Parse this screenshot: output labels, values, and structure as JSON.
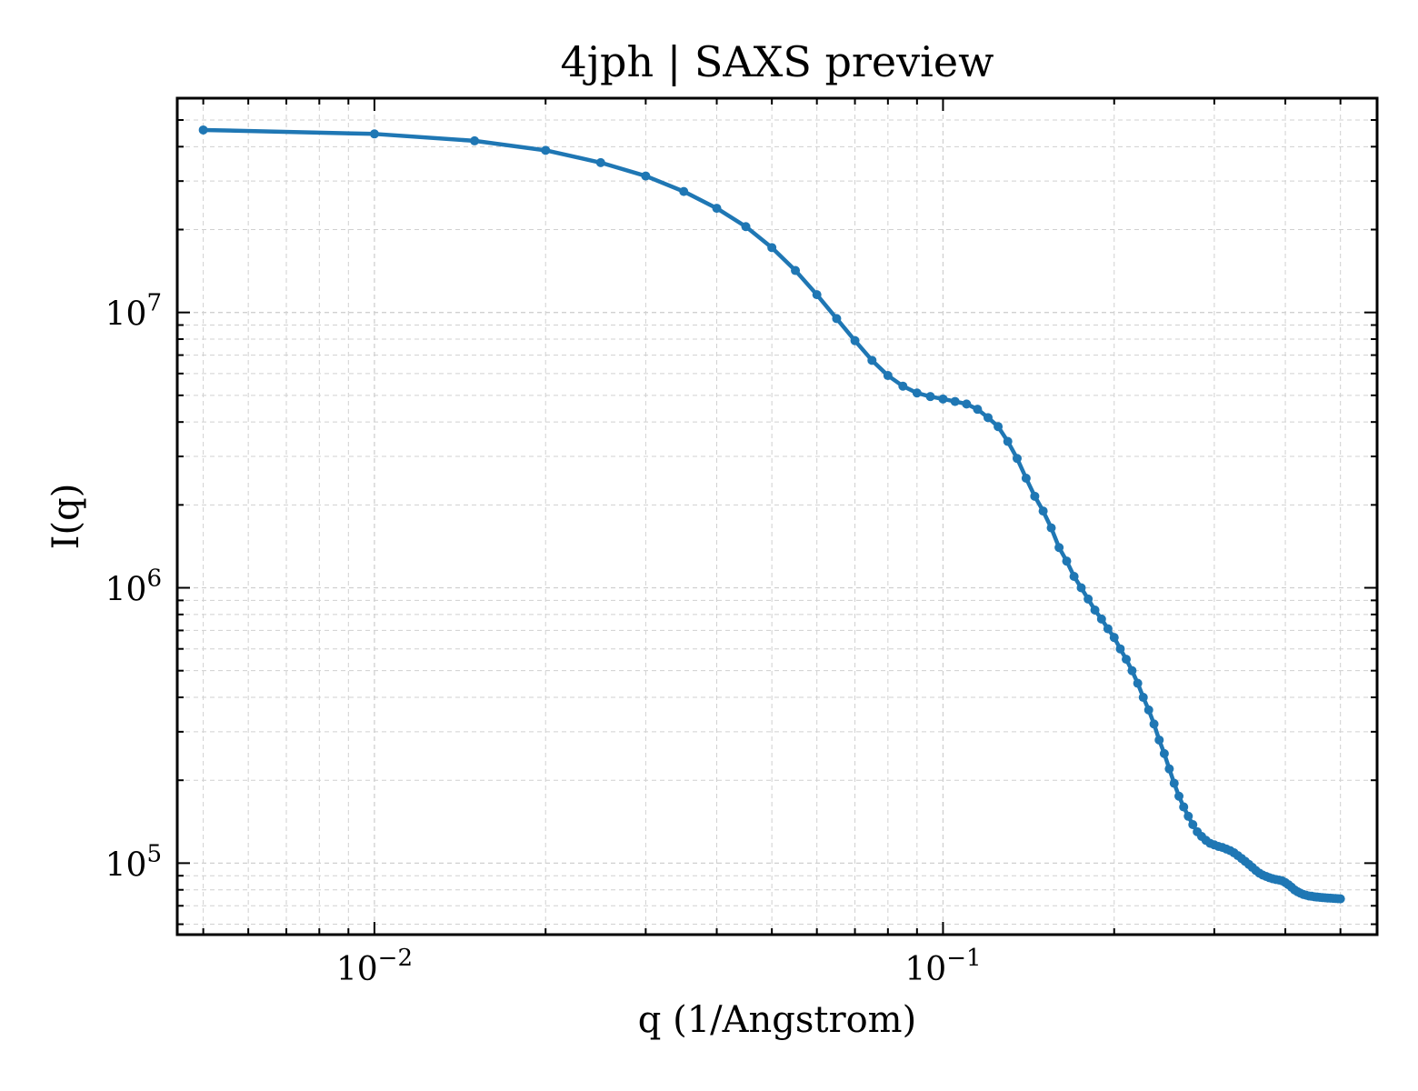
{
  "chart_data": {
    "type": "line",
    "title": "4jph | SAXS preview",
    "xlabel": "q (1/Angstrom)",
    "ylabel": "I(q)",
    "xscale": "log",
    "yscale": "log",
    "xlim": [
      0.0045,
      0.58
    ],
    "ylim": [
      55000,
      60000000
    ],
    "grid": true,
    "legend": "none",
    "line_color": "#1f77b4",
    "x_ticks": [
      {
        "base": "10",
        "exp": "−2",
        "value": 0.01
      },
      {
        "base": "10",
        "exp": "−1",
        "value": 0.1
      }
    ],
    "y_ticks": [
      {
        "base": "10",
        "exp": "5",
        "value": 100000
      },
      {
        "base": "10",
        "exp": "6",
        "value": 1000000
      },
      {
        "base": "10",
        "exp": "7",
        "value": 10000000
      }
    ],
    "series": [
      {
        "x": [
          0.005,
          0.01,
          0.015,
          0.02,
          0.025,
          0.03,
          0.035,
          0.04,
          0.045,
          0.05,
          0.055,
          0.06,
          0.065,
          0.07,
          0.075,
          0.08,
          0.085,
          0.09,
          0.095,
          0.1,
          0.105,
          0.11,
          0.115,
          0.12,
          0.125,
          0.13,
          0.135,
          0.14,
          0.145,
          0.15,
          0.155,
          0.16,
          0.165,
          0.17,
          0.175,
          0.18,
          0.185,
          0.19,
          0.195,
          0.2,
          0.205,
          0.21,
          0.215,
          0.22,
          0.225,
          0.23,
          0.235,
          0.24,
          0.245,
          0.25,
          0.255,
          0.26,
          0.265,
          0.27,
          0.275,
          0.28,
          0.285,
          0.29,
          0.295,
          0.3,
          0.305,
          0.31,
          0.315,
          0.32,
          0.325,
          0.33,
          0.335,
          0.34,
          0.345,
          0.35,
          0.355,
          0.36,
          0.365,
          0.37,
          0.375,
          0.38,
          0.385,
          0.39,
          0.395,
          0.4,
          0.405,
          0.41,
          0.415,
          0.42,
          0.425,
          0.43,
          0.435,
          0.44,
          0.445,
          0.45,
          0.455,
          0.46,
          0.465,
          0.47,
          0.475,
          0.48,
          0.485,
          0.49,
          0.495,
          0.5
        ],
        "y": [
          46000000,
          44500000,
          42000000,
          38800000,
          35000000,
          31300000,
          27500000,
          23900000,
          20500000,
          17200000,
          14200000,
          11600000,
          9500000,
          7900000,
          6700000,
          5900000,
          5400000,
          5100000,
          4950000,
          4850000,
          4750000,
          4650000,
          4450000,
          4150000,
          3850000,
          3400000,
          2950000,
          2500000,
          2150000,
          1900000,
          1650000,
          1400000,
          1250000,
          1100000,
          1000000,
          910000,
          830000,
          770000,
          710000,
          660000,
          600000,
          550000,
          500000,
          450000,
          400000,
          360000,
          320000,
          280000,
          250000,
          220000,
          195000,
          175000,
          160000,
          148000,
          138000,
          130000,
          125000,
          121000,
          118000,
          116500,
          115000,
          114000,
          112500,
          111000,
          109000,
          106500,
          104000,
          101500,
          99000,
          96500,
          94000,
          92000,
          90500,
          89500,
          88500,
          87800,
          87200,
          86800,
          86200,
          85000,
          83500,
          81800,
          80000,
          78800,
          77800,
          77000,
          76500,
          76000,
          75800,
          75500,
          75300,
          75100,
          75000,
          74800,
          74700,
          74600,
          74500,
          74400,
          74300,
          74200
        ]
      }
    ]
  }
}
